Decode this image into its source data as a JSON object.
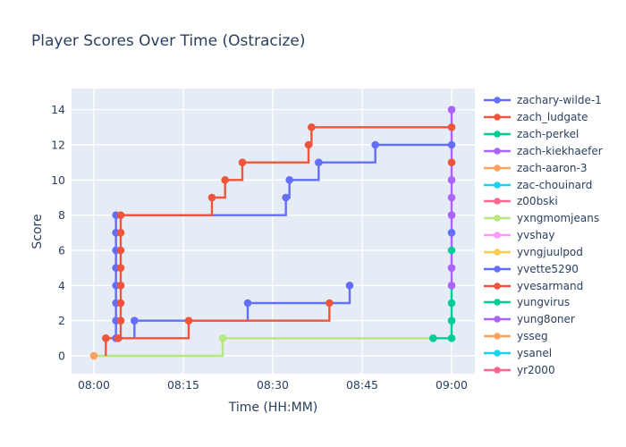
{
  "chart_data": {
    "type": "line",
    "title": "Player Scores Over Time (Ostracize)",
    "xlabel": "Time (HH:MM)",
    "ylabel": "Score",
    "step_shape": "hv",
    "x_unit": "minutes after 08:00",
    "x_tick_labels": [
      "08:00",
      "08:15",
      "08:30",
      "08:45",
      "09:00"
    ],
    "x_tick_minutes": [
      0,
      15,
      30,
      45,
      60
    ],
    "y_ticks": [
      0,
      2,
      4,
      6,
      8,
      10,
      12,
      14
    ],
    "xlim_minutes": [
      -3.8,
      63.9
    ],
    "ylim": [
      -1.0,
      15.2
    ],
    "grid": true,
    "legend_position": "right",
    "plot_bg": "#E5ECF6",
    "grid_color": "#FFFFFF",
    "text_color": "#2a3f5f",
    "legend": [
      {
        "label": "zachary-wilde-1",
        "color": "#636EFA"
      },
      {
        "label": "zach_ludgate",
        "color": "#EF553B"
      },
      {
        "label": "zach-perkel",
        "color": "#00CC96"
      },
      {
        "label": "zach-kiekhaefer",
        "color": "#AB63FA"
      },
      {
        "label": "zach-aaron-3",
        "color": "#FFA15A"
      },
      {
        "label": "zac-chouinard",
        "color": "#19D3F3"
      },
      {
        "label": "z00bski",
        "color": "#FF6692"
      },
      {
        "label": "yxngmomjeans",
        "color": "#B6E880"
      },
      {
        "label": "yvshay",
        "color": "#FF97FF"
      },
      {
        "label": "yvngjuulpod",
        "color": "#FECB52"
      },
      {
        "label": "yvette5290",
        "color": "#636EFA"
      },
      {
        "label": "yvesarmand",
        "color": "#EF553B"
      },
      {
        "label": "yungvirus",
        "color": "#00CC96"
      },
      {
        "label": "yung8oner",
        "color": "#AB63FA"
      },
      {
        "label": "ysseg",
        "color": "#FFA15A"
      },
      {
        "label": "ysanel",
        "color": "#19D3F3"
      },
      {
        "label": "yr2000",
        "color": "#FF6692"
      }
    ],
    "series": [
      {
        "name": "yxngmomjeans",
        "color": "#B6E880",
        "line": [
          [
            0,
            0
          ],
          [
            21.6,
            0
          ],
          [
            21.6,
            1
          ],
          [
            60,
            1
          ]
        ],
        "markers": [
          [
            21.6,
            1
          ]
        ]
      },
      {
        "name": "zach-perkel",
        "color": "#00CC96",
        "line": [
          [
            56.9,
            1
          ],
          [
            60,
            1
          ],
          [
            60,
            4
          ]
        ],
        "markers": [
          [
            56.9,
            1
          ],
          [
            60,
            1
          ],
          [
            60,
            2
          ],
          [
            60,
            3
          ]
        ]
      },
      {
        "name": "zach-kiekhaefer",
        "color": "#AB63FA",
        "line": [
          [
            60,
            4
          ],
          [
            60,
            14
          ]
        ],
        "markers": [
          [
            60,
            4
          ],
          [
            60,
            5
          ],
          [
            60,
            8
          ],
          [
            60,
            9
          ],
          [
            60,
            10
          ],
          [
            60,
            14
          ]
        ]
      },
      {
        "name": "yungvirus",
        "color": "#00CC96",
        "line": [],
        "markers": [
          [
            60,
            6
          ]
        ]
      },
      {
        "name": "yvette5290",
        "color": "#636EFA",
        "line": [
          [
            6.8,
            1
          ],
          [
            6.8,
            2
          ],
          [
            25.8,
            2
          ],
          [
            25.8,
            3
          ],
          [
            42.9,
            3
          ],
          [
            42.9,
            4
          ]
        ],
        "markers": [
          [
            6.8,
            2
          ],
          [
            25.8,
            3
          ],
          [
            42.9,
            4
          ],
          [
            60,
            7
          ]
        ]
      },
      {
        "name": "yvesarmand",
        "color": "#EF553B",
        "line": [
          [
            2,
            0
          ],
          [
            2,
            1
          ],
          [
            15.9,
            1
          ],
          [
            15.9,
            2
          ],
          [
            39.5,
            2
          ],
          [
            39.5,
            3
          ]
        ],
        "markers": [
          [
            2,
            1
          ],
          [
            15.9,
            2
          ],
          [
            39.5,
            3
          ],
          [
            60,
            11
          ]
        ]
      },
      {
        "name": "zachary-wilde-1",
        "color": "#636EFA",
        "line": [
          [
            3.7,
            1
          ],
          [
            3.7,
            8
          ],
          [
            32.2,
            8
          ],
          [
            32.2,
            9
          ],
          [
            32.8,
            9
          ],
          [
            32.8,
            10
          ],
          [
            37.7,
            10
          ],
          [
            37.7,
            11
          ],
          [
            47.2,
            11
          ],
          [
            47.2,
            12
          ],
          [
            60,
            12
          ]
        ],
        "markers": [
          [
            3.7,
            1
          ],
          [
            3.7,
            2
          ],
          [
            3.7,
            3
          ],
          [
            3.7,
            4
          ],
          [
            3.7,
            5
          ],
          [
            3.7,
            6
          ],
          [
            3.7,
            7
          ],
          [
            3.7,
            8
          ],
          [
            32.2,
            9
          ],
          [
            32.8,
            10
          ],
          [
            37.7,
            11
          ],
          [
            47.2,
            12
          ],
          [
            60,
            12
          ]
        ]
      },
      {
        "name": "zach_ludgate",
        "color": "#EF553B",
        "line": [
          [
            4.1,
            1
          ],
          [
            4.5,
            1
          ],
          [
            4.5,
            8
          ],
          [
            19.8,
            8
          ],
          [
            19.8,
            9
          ],
          [
            22,
            9
          ],
          [
            22,
            10
          ],
          [
            24.9,
            10
          ],
          [
            24.9,
            11
          ],
          [
            36,
            11
          ],
          [
            36,
            12
          ],
          [
            36.5,
            12
          ],
          [
            36.5,
            13
          ],
          [
            60,
            13
          ]
        ],
        "markers": [
          [
            4.1,
            1
          ],
          [
            4.5,
            2
          ],
          [
            4.5,
            3
          ],
          [
            4.5,
            4
          ],
          [
            4.5,
            5
          ],
          [
            4.5,
            6
          ],
          [
            4.5,
            7
          ],
          [
            4.5,
            8
          ],
          [
            19.8,
            9
          ],
          [
            22,
            10
          ],
          [
            24.9,
            11
          ],
          [
            36,
            12
          ],
          [
            36.5,
            13
          ],
          [
            60,
            13
          ]
        ]
      },
      {
        "name": "yvngjuulpod",
        "color": "#FECB52",
        "line": [],
        "markers": [
          [
            0,
            0
          ]
        ]
      },
      {
        "name": "ysseg",
        "color": "#FFA15A",
        "line": [],
        "markers": [
          [
            0,
            0
          ]
        ]
      }
    ]
  }
}
